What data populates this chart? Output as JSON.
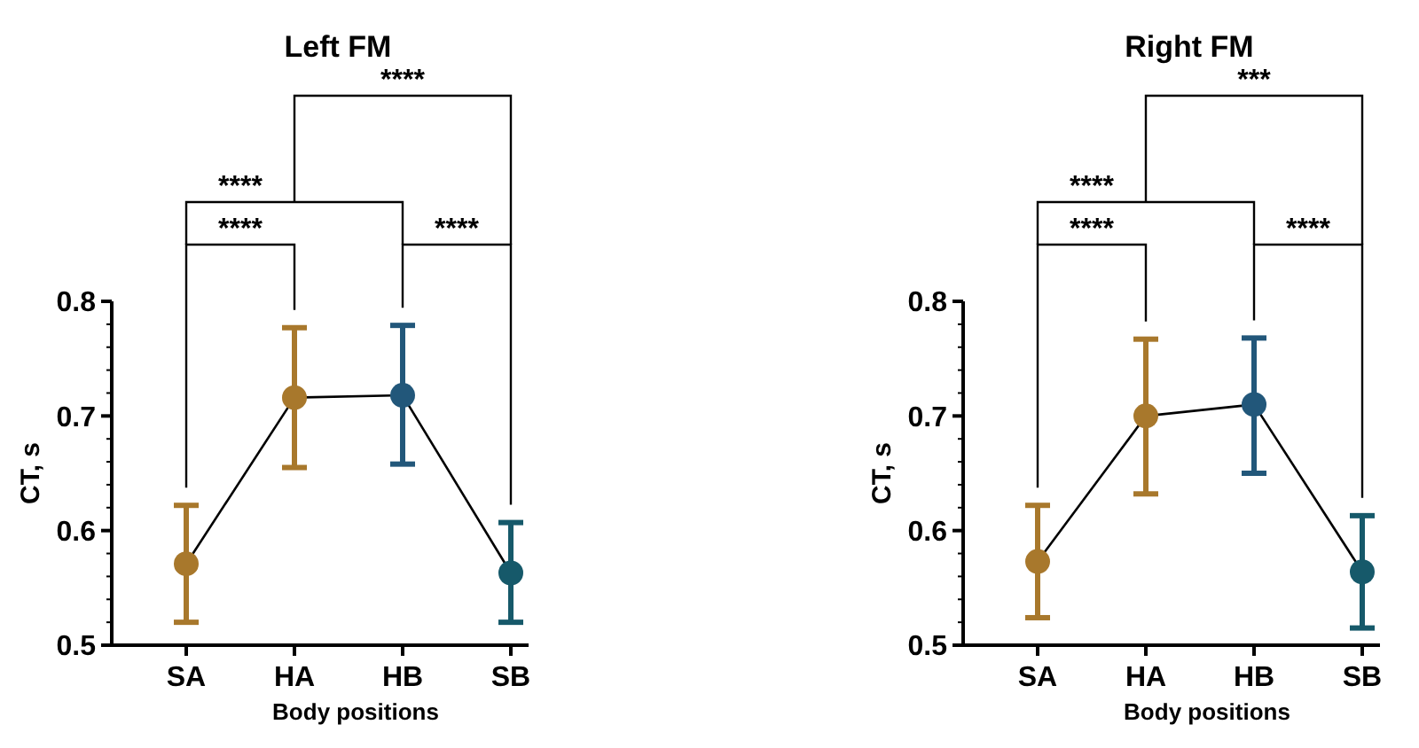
{
  "chart_data": [
    {
      "type": "line",
      "title": "Left FM",
      "xlabel": "Body positions",
      "ylabel": "CT, s",
      "categories": [
        "SA",
        "HA",
        "HB",
        "SB"
      ],
      "marker": "circle",
      "line_style": "solid",
      "ylim": [
        0.5,
        0.8
      ],
      "yticks": [
        0.5,
        {
          "value": 0.52,
          "label": null
        },
        {
          "value": 0.54,
          "label": null
        },
        {
          "value": 0.56,
          "label": null
        },
        {
          "value": 0.58,
          "label": null
        },
        0.6,
        {
          "value": 0.62,
          "label": null
        },
        {
          "value": 0.64,
          "label": null
        },
        {
          "value": 0.66,
          "label": null
        },
        {
          "value": 0.68,
          "label": null
        },
        0.7,
        {
          "value": 0.72,
          "label": null
        },
        {
          "value": 0.74,
          "label": null
        },
        {
          "value": 0.76,
          "label": null
        },
        {
          "value": 0.78,
          "label": null
        },
        0.8
      ],
      "series": [
        {
          "color": "#000000",
          "colors": [
            "#a8782c",
            "#a8782c",
            "#22577a",
            "#16596a"
          ],
          "values": [
            0.571,
            0.716,
            0.718,
            0.563
          ],
          "errors": [
            [
              0.52,
              0.622
            ],
            [
              0.655,
              0.777
            ],
            [
              0.658,
              0.779
            ],
            [
              0.52,
              0.607
            ]
          ]
        }
      ],
      "annotations": [
        "****",
        "****",
        "****",
        "****"
      ]
    },
    {
      "type": "line",
      "title": "Right FM",
      "xlabel": "Body positions",
      "ylabel": "CT, s",
      "categories": [
        "SA",
        "HA",
        "HB",
        "SB"
      ],
      "marker": "circle",
      "line_style": "solid",
      "ylim": [
        0.5,
        0.8
      ],
      "yticks": [
        0.5,
        {
          "value": 0.52,
          "label": null
        },
        {
          "value": 0.54,
          "label": null
        },
        {
          "value": 0.56,
          "label": null
        },
        {
          "value": 0.58,
          "label": null
        },
        0.6,
        {
          "value": 0.62,
          "label": null
        },
        {
          "value": 0.64,
          "label": null
        },
        {
          "value": 0.66,
          "label": null
        },
        {
          "value": 0.68,
          "label": null
        },
        0.7,
        {
          "value": 0.72,
          "label": null
        },
        {
          "value": 0.74,
          "label": null
        },
        {
          "value": 0.76,
          "label": null
        },
        {
          "value": 0.78,
          "label": null
        },
        0.8
      ],
      "series": [
        {
          "color": "#000000",
          "colors": [
            "#a8782c",
            "#a8782c",
            "#22577a",
            "#16596a"
          ],
          "values": [
            0.573,
            0.7,
            0.71,
            0.564
          ],
          "errors": [
            [
              0.524,
              0.622
            ],
            [
              0.632,
              0.767
            ],
            [
              0.65,
              0.768
            ],
            [
              0.515,
              0.613
            ]
          ]
        }
      ],
      "annotations": [
        "****",
        "****",
        "****",
        "***"
      ]
    }
  ]
}
